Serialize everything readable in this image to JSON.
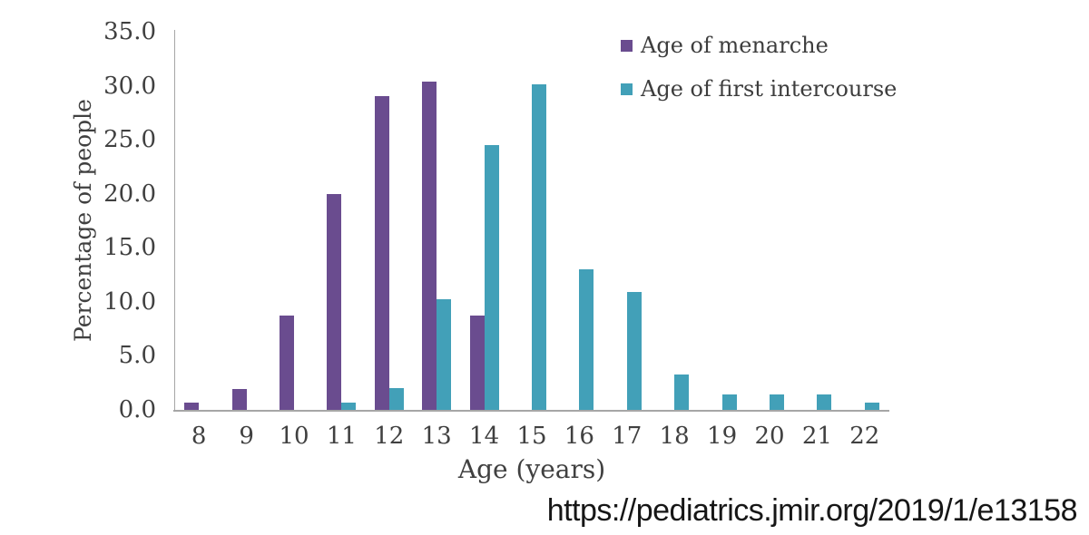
{
  "chart_data": {
    "type": "bar",
    "title": "",
    "xlabel": "Age (years)",
    "ylabel": "Percentage of people",
    "categories": [
      8,
      9,
      10,
      11,
      12,
      13,
      14,
      15,
      16,
      17,
      18,
      19,
      20,
      21,
      22
    ],
    "series": [
      {
        "name": "Age of menarche",
        "color": "#6a4c8f",
        "values": [
          0.7,
          1.9,
          8.7,
          20.0,
          29.0,
          30.4,
          8.7,
          null,
          null,
          null,
          null,
          null,
          null,
          null,
          null
        ]
      },
      {
        "name": "Age of first intercourse",
        "color": "#42a0b8",
        "values": [
          null,
          null,
          null,
          0.7,
          2.0,
          10.2,
          24.5,
          30.1,
          13.0,
          10.9,
          3.3,
          1.4,
          1.4,
          1.4,
          0.7
        ]
      }
    ],
    "ylim": [
      0,
      35
    ],
    "ytick_step": 5,
    "ytick_labels": [
      "0.0",
      "5.0",
      "10.0",
      "15.0",
      "20.0",
      "25.0",
      "30.0",
      "35.0"
    ],
    "grid": false,
    "legend_position": "top-right",
    "bar_layout": "grouped"
  },
  "footer": {
    "url": "https://pediatrics.jmir.org/2019/1/e13158"
  },
  "colors": {
    "axis_line": "#a6a6a6",
    "chart_text": "#404040",
    "url_text": "#161616",
    "background": "#ffffff",
    "series_menarche": "#6a4c8f",
    "series_first_intercourse": "#42a0b8"
  }
}
